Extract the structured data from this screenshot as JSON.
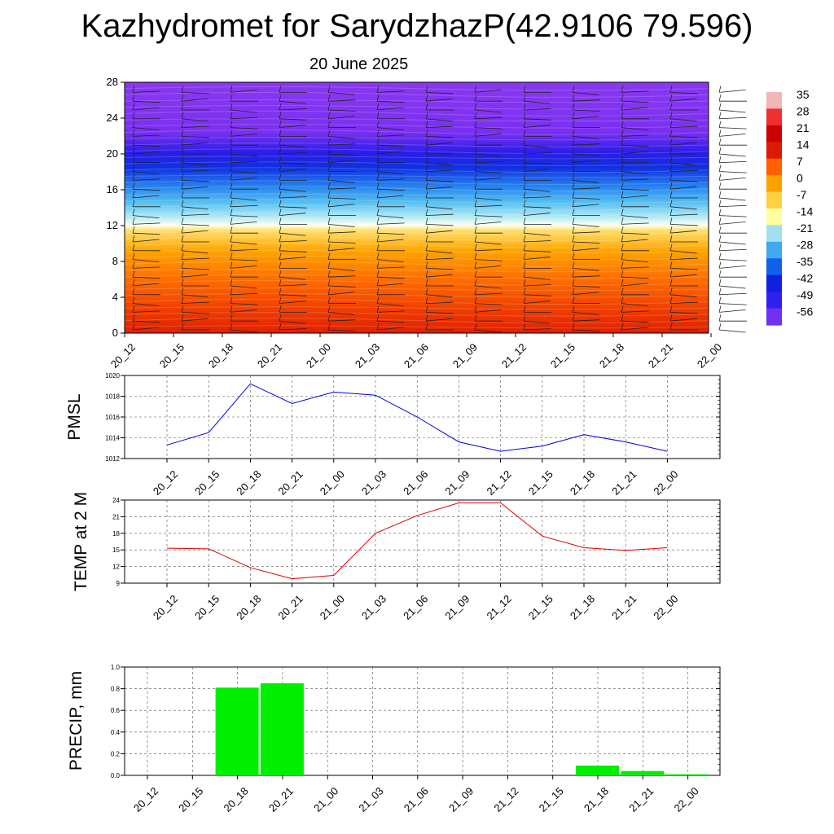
{
  "header": {
    "title": "Kazhydromet for SarydzhazP(42.9106 79.596)",
    "subtitle": "20 June 2025"
  },
  "chart_data": [
    {
      "type": "heatmap",
      "name": "temperature-cross-section",
      "title": "",
      "xlabel": "",
      "ylabel": "",
      "x": [
        "20_12",
        "20_15",
        "20_18",
        "20_21",
        "21_00",
        "21_03",
        "21_06",
        "21_09",
        "21_12",
        "21_15",
        "21_18",
        "21_21",
        "22_00"
      ],
      "y_ticks": [
        0,
        4,
        8,
        12,
        16,
        20,
        24,
        28
      ],
      "ylim": [
        0,
        28
      ],
      "overlay": "wind barbs",
      "colorbar": {
        "labels": [
          "35",
          "28",
          "21",
          "14",
          "7",
          "0",
          "-7",
          "-14",
          "-21",
          "-28",
          "-35",
          "-42",
          "-49",
          "-56"
        ],
        "colors": [
          "#f2b6b6",
          "#ee3030",
          "#cc0000",
          "#dd1a00",
          "#ff6000",
          "#ffa000",
          "#ffd040",
          "#ffffa0",
          "#a0e0f0",
          "#40a8f0",
          "#1060e8",
          "#1020e0",
          "#3020f0",
          "#7030f0"
        ]
      }
    },
    {
      "type": "line",
      "ylabel": "PMSL",
      "ylim": [
        1012,
        1020
      ],
      "y_ticks": [
        1012,
        1014,
        1016,
        1018,
        1020
      ],
      "x": [
        "20_12",
        "20_15",
        "20_18",
        "20_21",
        "21_00",
        "21_03",
        "21_06",
        "21_09",
        "21_12",
        "21_15",
        "21_18",
        "21_21",
        "22_00"
      ],
      "values": [
        1013.3,
        1014.5,
        1019.2,
        1017.3,
        1018.4,
        1018.1,
        1016.0,
        1013.6,
        1012.7,
        1013.2,
        1014.3,
        1013.6,
        1012.7
      ],
      "color": "#0000dd"
    },
    {
      "type": "line",
      "ylabel": "TEMP at 2 M",
      "ylim": [
        9,
        24
      ],
      "y_ticks": [
        9,
        12,
        15,
        18,
        21,
        24
      ],
      "x": [
        "20_12",
        "20_15",
        "20_18",
        "20_21",
        "21_00",
        "21_03",
        "21_06",
        "21_09",
        "21_12",
        "21_15",
        "21_18",
        "21_21",
        "22_00"
      ],
      "values": [
        15.3,
        15.2,
        11.8,
        9.8,
        10.4,
        18.0,
        21.2,
        23.5,
        23.5,
        17.5,
        15.4,
        14.9,
        15.4
      ],
      "color": "#dd0000"
    },
    {
      "type": "bar",
      "ylabel": "PRECIP, mm",
      "ylim": [
        0,
        1
      ],
      "y_ticks": [
        "0.0",
        "0.2",
        "0.4",
        "0.6",
        "0.8",
        "1.0"
      ],
      "categories": [
        "20_12",
        "20_15",
        "20_18",
        "20_21",
        "21_00",
        "21_03",
        "21_06",
        "21_09",
        "21_12",
        "21_15",
        "21_18",
        "21_21",
        "22_00"
      ],
      "values": [
        0,
        0,
        0.81,
        0.85,
        0,
        0,
        0,
        0,
        0,
        0,
        0.09,
        0.04,
        0.01
      ],
      "color": "#00ee00"
    }
  ]
}
